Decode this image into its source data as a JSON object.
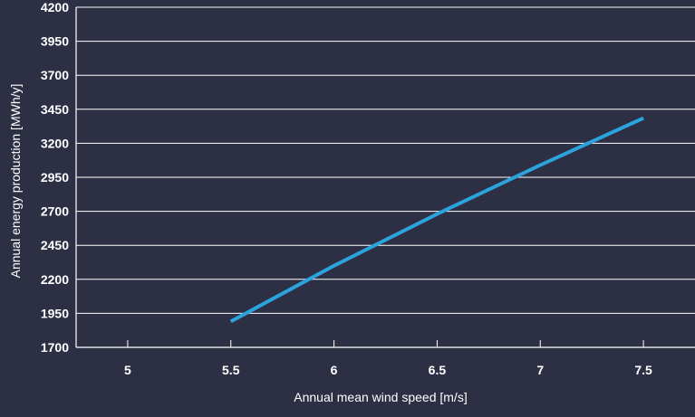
{
  "chart_data": {
    "type": "line",
    "xlabel": "Annual mean wind speed [m/s]",
    "ylabel": "Annual energy production [MWh/y]",
    "xlim": [
      4.75,
      7.75
    ],
    "ylim": [
      1700,
      4200
    ],
    "xticks": [
      5,
      5.5,
      6,
      6.5,
      7,
      7.5
    ],
    "xtick_labels": [
      "5",
      "5.5",
      "6",
      "6.5",
      "7",
      "7.5"
    ],
    "yticks": [
      1700,
      1950,
      2200,
      2450,
      2700,
      2950,
      3200,
      3450,
      3700,
      3950,
      4200
    ],
    "ytick_labels": [
      "1700",
      "1950",
      "2200",
      "2450",
      "2700",
      "2950",
      "3200",
      "3450",
      "3700",
      "3950",
      "4200"
    ],
    "grid": "horizontal",
    "series": [
      {
        "x": [
          5.5,
          6,
          6.5,
          7,
          7.5
        ],
        "y": [
          1890,
          2300,
          2680,
          3040,
          3385
        ],
        "color": "#2ba3dc"
      }
    ],
    "colors": {
      "background": "#2d3044",
      "grid": "#ffffff",
      "text": "#ffffff"
    }
  }
}
